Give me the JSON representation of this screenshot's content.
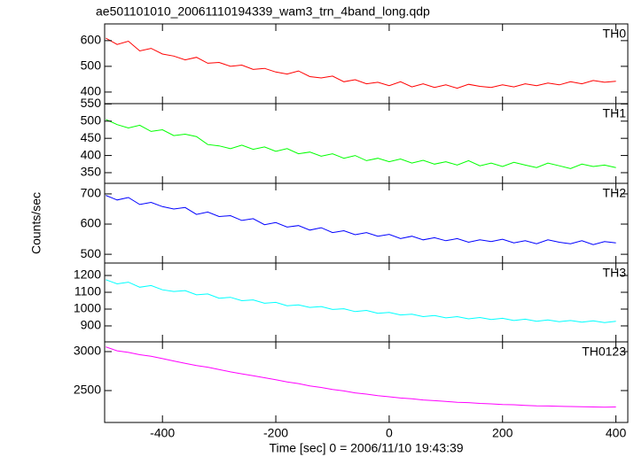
{
  "title": "ae501101010_20061110194339_wam3_trn_4band_long.qdp",
  "ylabel": "Counts/sec",
  "xlabel": "Time [sec] 0 = 2006/11/10 19:43:39",
  "chart_data": [
    {
      "type": "line",
      "label": "TH0",
      "color": "#ff0000",
      "xlim": [
        -502,
        421
      ],
      "xticks": [
        -400,
        -200,
        0,
        200,
        400
      ],
      "ylim": [
        355,
        665
      ],
      "yticks": [
        400,
        500,
        600
      ],
      "x": [
        -500,
        -480,
        -460,
        -440,
        -420,
        -400,
        -380,
        -360,
        -340,
        -320,
        -300,
        -280,
        -260,
        -240,
        -220,
        -200,
        -180,
        -160,
        -140,
        -120,
        -100,
        -80,
        -60,
        -40,
        -20,
        0,
        20,
        40,
        60,
        80,
        100,
        120,
        140,
        160,
        180,
        200,
        220,
        240,
        260,
        280,
        300,
        320,
        340,
        360,
        380,
        400
      ],
      "values": [
        610,
        585,
        598,
        560,
        570,
        548,
        540,
        525,
        535,
        512,
        515,
        500,
        505,
        488,
        492,
        478,
        470,
        482,
        460,
        455,
        462,
        440,
        448,
        432,
        438,
        425,
        440,
        420,
        432,
        418,
        428,
        415,
        430,
        422,
        418,
        428,
        420,
        432,
        425,
        435,
        428,
        440,
        432,
        445,
        438,
        442
      ]
    },
    {
      "type": "line",
      "label": "TH1",
      "color": "#00ff00",
      "xlim": [
        -502,
        421
      ],
      "xticks": [
        -400,
        -200,
        0,
        200,
        400
      ],
      "ylim": [
        319,
        551
      ],
      "yticks": [
        350,
        400,
        450,
        500,
        550
      ],
      "x": [
        -500,
        -480,
        -460,
        -440,
        -420,
        -400,
        -380,
        -360,
        -340,
        -320,
        -300,
        -280,
        -260,
        -240,
        -220,
        -200,
        -180,
        -160,
        -140,
        -120,
        -100,
        -80,
        -60,
        -40,
        -20,
        0,
        20,
        40,
        60,
        80,
        100,
        120,
        140,
        160,
        180,
        200,
        220,
        240,
        260,
        280,
        300,
        320,
        340,
        360,
        380,
        400
      ],
      "values": [
        505,
        490,
        480,
        488,
        470,
        475,
        458,
        462,
        455,
        432,
        428,
        420,
        430,
        418,
        425,
        412,
        420,
        405,
        410,
        398,
        405,
        392,
        400,
        385,
        392,
        382,
        390,
        378,
        386,
        375,
        382,
        372,
        385,
        370,
        378,
        368,
        380,
        372,
        365,
        378,
        370,
        362,
        375,
        368,
        372,
        365
      ]
    },
    {
      "type": "line",
      "label": "TH2",
      "color": "#0000ff",
      "xlim": [
        -502,
        421
      ],
      "xticks": [
        -400,
        -200,
        0,
        200,
        400
      ],
      "ylim": [
        471,
        735
      ],
      "yticks": [
        500,
        600,
        700
      ],
      "x": [
        -500,
        -480,
        -460,
        -440,
        -420,
        -400,
        -380,
        -360,
        -340,
        -320,
        -300,
        -280,
        -260,
        -240,
        -220,
        -200,
        -180,
        -160,
        -140,
        -120,
        -100,
        -80,
        -60,
        -40,
        -20,
        0,
        20,
        40,
        60,
        80,
        100,
        120,
        140,
        160,
        180,
        200,
        220,
        240,
        260,
        280,
        300,
        320,
        340,
        360,
        380,
        400
      ],
      "values": [
        695,
        680,
        688,
        665,
        672,
        658,
        650,
        655,
        632,
        640,
        625,
        628,
        612,
        618,
        598,
        605,
        590,
        595,
        580,
        588,
        572,
        578,
        565,
        572,
        560,
        566,
        552,
        560,
        548,
        555,
        545,
        552,
        540,
        548,
        542,
        550,
        538,
        545,
        535,
        548,
        540,
        535,
        545,
        532,
        542,
        538
      ]
    },
    {
      "type": "line",
      "label": "TH3",
      "color": "#00ffff",
      "xlim": [
        -502,
        421
      ],
      "xticks": [
        -400,
        -200,
        0,
        200,
        400
      ],
      "ylim": [
        805,
        1274
      ],
      "yticks": [
        900,
        1000,
        1100,
        1200
      ],
      "x": [
        -500,
        -480,
        -460,
        -440,
        -420,
        -400,
        -380,
        -360,
        -340,
        -320,
        -300,
        -280,
        -260,
        -240,
        -220,
        -200,
        -180,
        -160,
        -140,
        -120,
        -100,
        -80,
        -60,
        -40,
        -20,
        0,
        20,
        40,
        60,
        80,
        100,
        120,
        140,
        160,
        180,
        200,
        220,
        240,
        260,
        280,
        300,
        320,
        340,
        360,
        380,
        400
      ],
      "values": [
        1175,
        1150,
        1160,
        1130,
        1140,
        1115,
        1105,
        1110,
        1085,
        1090,
        1065,
        1070,
        1050,
        1055,
        1035,
        1040,
        1020,
        1025,
        1010,
        1015,
        998,
        1002,
        985,
        992,
        975,
        980,
        965,
        970,
        955,
        962,
        948,
        955,
        942,
        950,
        938,
        945,
        932,
        940,
        928,
        935,
        925,
        932,
        922,
        930,
        920,
        928
      ]
    },
    {
      "type": "line",
      "label": "TH0123",
      "color": "#ff00ff",
      "xlim": [
        -502,
        421
      ],
      "xticks": [
        -400,
        -200,
        0,
        200,
        400
      ],
      "ylim": [
        2091,
        3125
      ],
      "yticks": [
        2500,
        3000
      ],
      "x": [
        -500,
        -480,
        -460,
        -440,
        -420,
        -400,
        -380,
        -360,
        -340,
        -320,
        -300,
        -280,
        -260,
        -240,
        -220,
        -200,
        -180,
        -160,
        -140,
        -120,
        -100,
        -80,
        -60,
        -40,
        -20,
        0,
        20,
        40,
        60,
        80,
        100,
        120,
        140,
        160,
        180,
        200,
        220,
        240,
        260,
        280,
        300,
        320,
        340,
        360,
        380,
        400
      ],
      "values": [
        3060,
        3010,
        2990,
        2960,
        2940,
        2910,
        2880,
        2850,
        2820,
        2800,
        2770,
        2740,
        2715,
        2690,
        2665,
        2640,
        2610,
        2590,
        2560,
        2540,
        2515,
        2495,
        2470,
        2455,
        2435,
        2420,
        2405,
        2395,
        2380,
        2370,
        2360,
        2350,
        2345,
        2335,
        2330,
        2320,
        2318,
        2310,
        2305,
        2302,
        2298,
        2295,
        2292,
        2290,
        2288,
        2290
      ]
    }
  ]
}
